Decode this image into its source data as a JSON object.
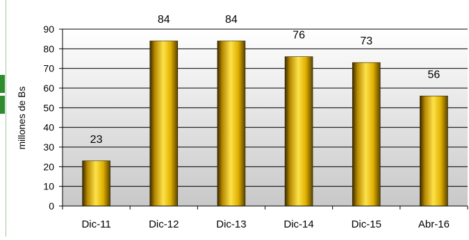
{
  "chart_data": {
    "type": "bar",
    "categories": [
      "Dic-11",
      "Dic-12",
      "Dic-13",
      "Dic-14",
      "Dic-15",
      "Abr-16"
    ],
    "values": [
      23,
      84,
      84,
      76,
      73,
      56
    ],
    "data_labels": [
      "23",
      "84",
      "84",
      "76",
      "73",
      "56"
    ],
    "title": "",
    "xlabel": "",
    "ylabel": "millones de Bs",
    "ylim": [
      0,
      90
    ],
    "yticks": [
      "0",
      "10",
      "20",
      "30",
      "40",
      "50",
      "60",
      "70",
      "80",
      "90"
    ],
    "grid": true,
    "legend": "none",
    "colors": {
      "bar_light": "#fde24a",
      "bar_mid": "#e0b000",
      "bar_dark": "#3a2a00",
      "plot_bg_top": "#ffffff",
      "plot_bg_bottom": "#c8c8c8",
      "gridline": "#000000"
    }
  }
}
